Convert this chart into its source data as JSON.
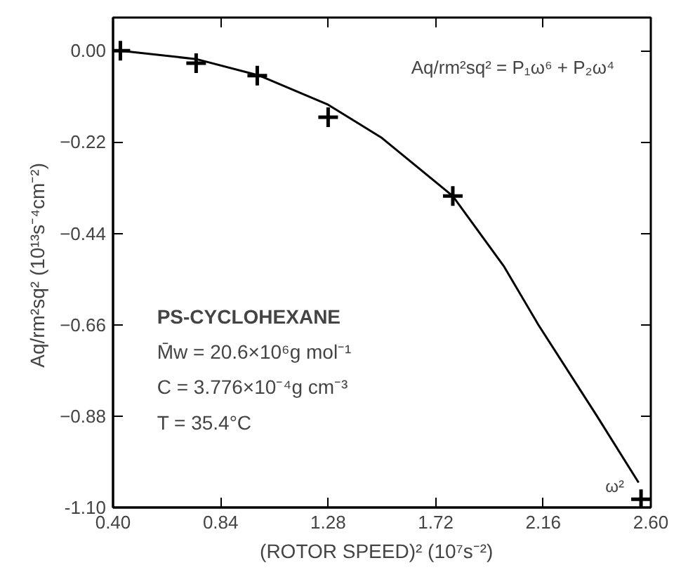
{
  "chart_data": {
    "type": "scatter",
    "xlabel": "(ROTOR SPEED)²   (10⁷s⁻²)",
    "ylabel": "Aq/rm²sq²  (10¹³s⁻⁴cm⁻²)",
    "series": [
      {
        "color": "#000000",
        "marker": "cross",
        "x": [
          0.43,
          0.74,
          0.99,
          1.28,
          1.79,
          2.56
        ],
        "values": [
          0.0,
          -0.03,
          -0.06,
          -0.16,
          -0.35,
          -1.08
        ]
      },
      {
        "type": "line",
        "color": "#000000",
        "line_style": "solid",
        "x": [
          0.43,
          0.74,
          1.0,
          1.28,
          1.5,
          1.79,
          2.0,
          2.14,
          2.38,
          2.55
        ],
        "values": [
          0.0,
          -0.02,
          -0.06,
          -0.13,
          -0.21,
          -0.35,
          -0.52,
          -0.66,
          -0.88,
          -1.04
        ]
      }
    ],
    "xlim": [
      0.4,
      2.6
    ],
    "ylim": [
      -1.1,
      0.08
    ],
    "xticks": [
      {
        "value": 0.4,
        "label": "0.40"
      },
      {
        "value": 0.84,
        "label": "0.84"
      },
      {
        "value": 1.28,
        "label": "1.28"
      },
      {
        "value": 1.72,
        "label": "1.72"
      },
      {
        "value": 2.16,
        "label": "2.16"
      },
      {
        "value": 2.6,
        "label": "2.60"
      }
    ],
    "yticks": [
      {
        "value": 0.0,
        "label": "0.00"
      },
      -0.22,
      -0.44,
      -0.66,
      -0.88,
      {
        "value": -1.1,
        "label": "-1.10"
      }
    ],
    "annotations": [
      "Aq/rm²sq² = P₁ω⁶ + P₂ω⁴",
      "PS-CYCLOHEXANE",
      "M̄w = 20.6×10⁶g mol⁻¹",
      "C = 3.776×10⁻⁴g cm⁻³",
      "T = 35.4°C",
      {
        "text": "ω²",
        "x": 2.56,
        "y": -1.08
      }
    ],
    "grid": false
  }
}
